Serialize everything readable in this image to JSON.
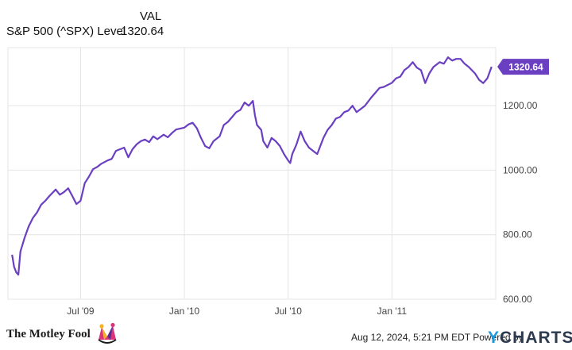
{
  "legend": {
    "header": "VAL",
    "series_name": "S&P 500 (^SPX) Level",
    "series_value": "1320.64"
  },
  "colors": {
    "line": "#6a3fc2",
    "grid": "#e4e4e4",
    "axis": "#bfbfbf"
  },
  "chart_data": {
    "type": "line",
    "title": "",
    "xlabel": "",
    "ylabel": "",
    "x_ticks": [
      "Jul '09",
      "Jan '10",
      "Jul '10",
      "Jan '11"
    ],
    "y_ticks": [
      "600.00",
      "800.00",
      "1000.00",
      "1200.00"
    ],
    "ylim": [
      600,
      1380
    ],
    "last_value_label": "1320.64",
    "series": [
      {
        "values": [
          [
            2009.17,
            738
          ],
          [
            2009.18,
            700
          ],
          [
            2009.19,
            683
          ],
          [
            2009.2,
            676
          ],
          [
            2009.21,
            748
          ],
          [
            2009.23,
            790
          ],
          [
            2009.25,
            826
          ],
          [
            2009.27,
            852
          ],
          [
            2009.29,
            869
          ],
          [
            2009.31,
            893
          ],
          [
            2009.33,
            905
          ],
          [
            2009.35,
            920
          ],
          [
            2009.38,
            940
          ],
          [
            2009.4,
            924
          ],
          [
            2009.42,
            932
          ],
          [
            2009.44,
            944
          ],
          [
            2009.46,
            920
          ],
          [
            2009.48,
            895
          ],
          [
            2009.5,
            905
          ],
          [
            2009.52,
            960
          ],
          [
            2009.54,
            980
          ],
          [
            2009.56,
            1003
          ],
          [
            2009.58,
            1010
          ],
          [
            2009.6,
            1020
          ],
          [
            2009.63,
            1030
          ],
          [
            2009.65,
            1035
          ],
          [
            2009.67,
            1060
          ],
          [
            2009.69,
            1065
          ],
          [
            2009.71,
            1070
          ],
          [
            2009.73,
            1040
          ],
          [
            2009.75,
            1065
          ],
          [
            2009.77,
            1080
          ],
          [
            2009.79,
            1090
          ],
          [
            2009.81,
            1095
          ],
          [
            2009.83,
            1087
          ],
          [
            2009.85,
            1105
          ],
          [
            2009.87,
            1096
          ],
          [
            2009.9,
            1110
          ],
          [
            2009.92,
            1102
          ],
          [
            2009.94,
            1115
          ],
          [
            2009.96,
            1126
          ],
          [
            2010.0,
            1132
          ],
          [
            2010.02,
            1142
          ],
          [
            2010.04,
            1147
          ],
          [
            2010.06,
            1130
          ],
          [
            2010.08,
            1100
          ],
          [
            2010.1,
            1075
          ],
          [
            2010.12,
            1068
          ],
          [
            2010.14,
            1090
          ],
          [
            2010.17,
            1105
          ],
          [
            2010.19,
            1140
          ],
          [
            2010.21,
            1150
          ],
          [
            2010.23,
            1165
          ],
          [
            2010.25,
            1180
          ],
          [
            2010.27,
            1187
          ],
          [
            2010.29,
            1210
          ],
          [
            2010.31,
            1200
          ],
          [
            2010.33,
            1215
          ],
          [
            2010.34,
            1170
          ],
          [
            2010.35,
            1140
          ],
          [
            2010.37,
            1125
          ],
          [
            2010.38,
            1090
          ],
          [
            2010.4,
            1070
          ],
          [
            2010.42,
            1100
          ],
          [
            2010.44,
            1090
          ],
          [
            2010.46,
            1075
          ],
          [
            2010.48,
            1050
          ],
          [
            2010.5,
            1030
          ],
          [
            2010.51,
            1022
          ],
          [
            2010.52,
            1050
          ],
          [
            2010.54,
            1080
          ],
          [
            2010.56,
            1120
          ],
          [
            2010.58,
            1090
          ],
          [
            2010.6,
            1070
          ],
          [
            2010.62,
            1060
          ],
          [
            2010.64,
            1050
          ],
          [
            2010.67,
            1100
          ],
          [
            2010.69,
            1125
          ],
          [
            2010.71,
            1140
          ],
          [
            2010.73,
            1160
          ],
          [
            2010.75,
            1165
          ],
          [
            2010.77,
            1180
          ],
          [
            2010.79,
            1185
          ],
          [
            2010.81,
            1200
          ],
          [
            2010.83,
            1180
          ],
          [
            2010.85,
            1190
          ],
          [
            2010.87,
            1200
          ],
          [
            2010.9,
            1225
          ],
          [
            2010.92,
            1240
          ],
          [
            2010.94,
            1255
          ],
          [
            2010.96,
            1258
          ],
          [
            2011.0,
            1271
          ],
          [
            2011.02,
            1285
          ],
          [
            2011.04,
            1290
          ],
          [
            2011.06,
            1310
          ],
          [
            2011.08,
            1320
          ],
          [
            2011.1,
            1335
          ],
          [
            2011.12,
            1318
          ],
          [
            2011.14,
            1310
          ],
          [
            2011.16,
            1270
          ],
          [
            2011.18,
            1300
          ],
          [
            2011.2,
            1320
          ],
          [
            2011.23,
            1335
          ],
          [
            2011.25,
            1330
          ],
          [
            2011.27,
            1350
          ],
          [
            2011.29,
            1340
          ],
          [
            2011.31,
            1345
          ],
          [
            2011.33,
            1345
          ],
          [
            2011.35,
            1330
          ],
          [
            2011.37,
            1320
          ],
          [
            2011.4,
            1300
          ],
          [
            2011.42,
            1280
          ],
          [
            2011.44,
            1270
          ],
          [
            2011.46,
            1285
          ],
          [
            2011.48,
            1320.64
          ]
        ]
      }
    ]
  },
  "footer": {
    "brand": "The Motley Fool",
    "timestamp": "Aug 12, 2024, 5:21 PM EDT Powered by",
    "powered_y": "Y",
    "powered_rest": "CHARTS"
  }
}
